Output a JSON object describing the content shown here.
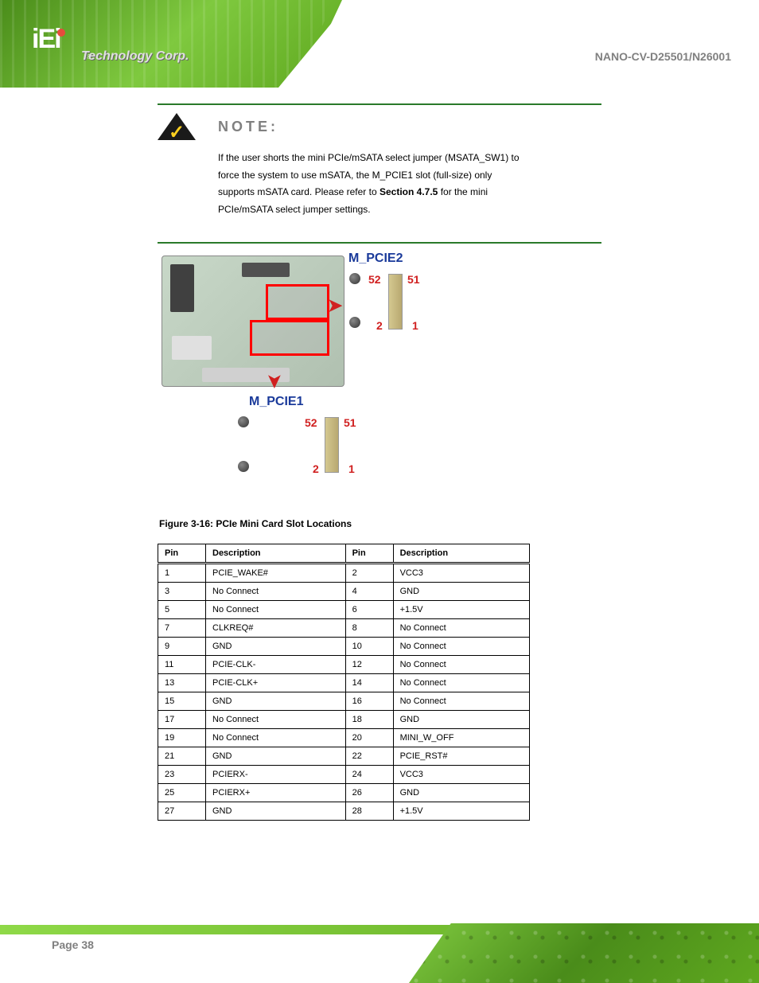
{
  "header": {
    "logo_text": "iEi",
    "reg": "®",
    "tech_text": "Technology Corp.",
    "right_text": "NANO-CV-D25501/N26001"
  },
  "note": {
    "title": "NOTE:",
    "line1": "If the user shorts the mini PCIe/mSATA select jumper (MSATA_SW1) to",
    "line2": "force the system to use mSATA, the M_PCIE1 slot (full-size) only",
    "line3": "supports mSATA card. Please refer to ",
    "line3b": "Section 4.7.5",
    "line3c": " for the mini",
    "line4": "PCIe/mSATA select jumper settings."
  },
  "figure": {
    "mpcie2_label": "M_PCIE2",
    "mpcie1_label": "M_PCIE1",
    "pin_52": "52",
    "pin_51": "51",
    "pin_2": "2",
    "pin_1": "1",
    "caption_prefix": "Figure 3-16: PCIe Mini",
    "caption_suffix": " Card Slot Locations"
  },
  "table": {
    "headers": [
      "Pin",
      "Description",
      "Pin",
      "Description"
    ],
    "rows": [
      [
        "1",
        "PCIE_WAKE#",
        "2",
        "VCC3"
      ],
      [
        "3",
        "No Connect",
        "4",
        "GND"
      ],
      [
        "5",
        "No Connect",
        "6",
        "+1.5V"
      ],
      [
        "7",
        "CLKREQ#",
        "8",
        "No Connect"
      ],
      [
        "9",
        "GND",
        "10",
        "No Connect"
      ],
      [
        "11",
        "PCIE-CLK-",
        "12",
        "No Connect"
      ],
      [
        "13",
        "PCIE-CLK+",
        "14",
        "No Connect"
      ],
      [
        "15",
        "GND",
        "16",
        "No Connect"
      ],
      [
        "17",
        "No Connect",
        "18",
        "GND"
      ],
      [
        "19",
        "No Connect",
        "20",
        "MINI_W_OFF"
      ],
      [
        "21",
        "GND",
        "22",
        "PCIE_RST#"
      ],
      [
        "23",
        "PCIERX-",
        "24",
        "VCC3"
      ],
      [
        "25",
        "PCIERX+",
        "26",
        "GND"
      ],
      [
        "27",
        "GND",
        "28",
        "+1.5V"
      ]
    ]
  },
  "footer": {
    "page": "Page 38"
  },
  "colors": {
    "green_primary": "#5fa81f",
    "green_light": "#8fd948",
    "blue_label": "#1a3a9a",
    "red_pin": "#d02020",
    "gray_text": "#808080",
    "note_border": "#2a7a2a"
  }
}
